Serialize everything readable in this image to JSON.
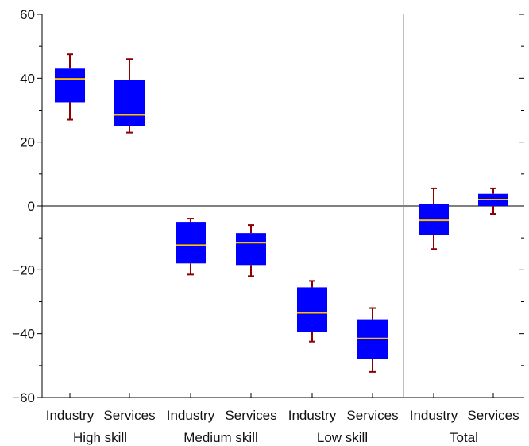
{
  "chart_data": {
    "type": "boxplot",
    "ylim": [
      -60,
      60
    ],
    "y_major_ticks": [
      -60,
      -40,
      -20,
      0,
      20,
      40,
      60
    ],
    "y_minor_ticks": [
      -50,
      -30,
      -10,
      10,
      30,
      50
    ],
    "grid": false,
    "zero_line": true,
    "groups": [
      {
        "label": "High skill",
        "boxes": [
          {
            "category": "Industry",
            "whisker_low": 27,
            "q1": 32.5,
            "median": 39.8,
            "q3": 43,
            "whisker_high": 47.5
          },
          {
            "category": "Services",
            "whisker_low": 23,
            "q1": 25,
            "median": 28.5,
            "q3": 39.5,
            "whisker_high": 46
          }
        ]
      },
      {
        "label": "Medium skill",
        "boxes": [
          {
            "category": "Industry",
            "whisker_low": -21.5,
            "q1": -18,
            "median": -12.3,
            "q3": -5,
            "whisker_high": -4
          },
          {
            "category": "Services",
            "whisker_low": -22,
            "q1": -18.5,
            "median": -11.5,
            "q3": -8.5,
            "whisker_high": -6
          }
        ]
      },
      {
        "label": "Low skill",
        "boxes": [
          {
            "category": "Industry",
            "whisker_low": -42.5,
            "q1": -39.5,
            "median": -33.5,
            "q3": -25.5,
            "whisker_high": -23.5
          },
          {
            "category": "Services",
            "whisker_low": -52,
            "q1": -48,
            "median": -41.5,
            "q3": -35.5,
            "whisker_high": -32
          }
        ]
      },
      {
        "label": "Total",
        "boxes": [
          {
            "category": "Industry",
            "whisker_low": -13.5,
            "q1": -9,
            "median": -4.5,
            "q3": 0.5,
            "whisker_high": 5.5
          },
          {
            "category": "Services",
            "whisker_low": -2.5,
            "q1": 0,
            "median": 2,
            "q3": 3.8,
            "whisker_high": 5.5
          }
        ]
      }
    ],
    "colors": {
      "box_fill": "#0000ff",
      "median": "#ffc000",
      "whisker": "#8b0000",
      "axis": "#000000",
      "separator": "#808080"
    }
  }
}
